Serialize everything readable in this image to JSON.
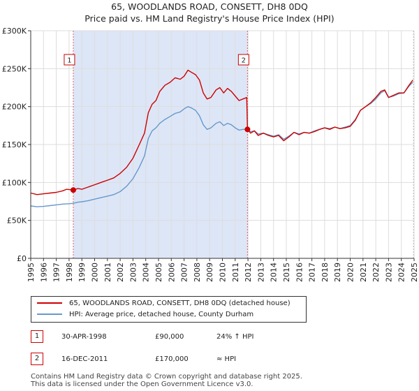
{
  "title_line1": "65, WOODLANDS ROAD, CONSETT, DH8 0DQ",
  "title_line2": "Price paid vs. HM Land Registry's House Price Index (HPI)",
  "colors": {
    "red": "#cc0000",
    "blue": "#6699cc",
    "shade": "#dde6f7",
    "grid": "#dddddd"
  },
  "chart_data": {
    "type": "line",
    "ylim": [
      0,
      300000
    ],
    "xlim": [
      1995,
      2025
    ],
    "y_ticks": [
      {
        "value": 0,
        "label": "£0"
      },
      {
        "value": 50000,
        "label": "£50K"
      },
      {
        "value": 100000,
        "label": "£100K"
      },
      {
        "value": 150000,
        "label": "£150K"
      },
      {
        "value": 200000,
        "label": "£200K"
      },
      {
        "value": 250000,
        "label": "£250K"
      },
      {
        "value": 300000,
        "label": "£300K"
      }
    ],
    "x_ticks": [
      "1995",
      "1996",
      "1997",
      "1998",
      "1999",
      "2000",
      "2001",
      "2002",
      "2003",
      "2004",
      "2005",
      "2006",
      "2007",
      "2008",
      "2009",
      "2010",
      "2011",
      "2012",
      "2013",
      "2014",
      "2015",
      "2016",
      "2017",
      "2018",
      "2019",
      "2020",
      "2021",
      "2022",
      "2023",
      "2024",
      "2025"
    ],
    "series": [
      {
        "name": "65, WOODLANDS ROAD, CONSETT, DH8 0DQ (detached house)",
        "color": "#cc0000",
        "points": [
          [
            1995.0,
            86000
          ],
          [
            1995.5,
            84000
          ],
          [
            1996.0,
            85000
          ],
          [
            1996.5,
            86000
          ],
          [
            1997.0,
            87000
          ],
          [
            1997.5,
            89000
          ],
          [
            1997.8,
            91000
          ],
          [
            1998.33,
            90000
          ],
          [
            1998.7,
            92000
          ],
          [
            1999.0,
            91000
          ],
          [
            1999.5,
            94000
          ],
          [
            2000.0,
            97000
          ],
          [
            2000.5,
            100000
          ],
          [
            2001.0,
            103000
          ],
          [
            2001.5,
            106000
          ],
          [
            2002.0,
            112000
          ],
          [
            2002.5,
            120000
          ],
          [
            2003.0,
            132000
          ],
          [
            2003.5,
            150000
          ],
          [
            2003.9,
            165000
          ],
          [
            2004.2,
            192000
          ],
          [
            2004.5,
            203000
          ],
          [
            2004.8,
            208000
          ],
          [
            2005.1,
            220000
          ],
          [
            2005.5,
            228000
          ],
          [
            2005.9,
            232000
          ],
          [
            2006.3,
            238000
          ],
          [
            2006.7,
            236000
          ],
          [
            2007.0,
            240000
          ],
          [
            2007.3,
            248000
          ],
          [
            2007.6,
            245000
          ],
          [
            2007.9,
            242000
          ],
          [
            2008.2,
            235000
          ],
          [
            2008.5,
            218000
          ],
          [
            2008.8,
            210000
          ],
          [
            2009.1,
            212000
          ],
          [
            2009.5,
            222000
          ],
          [
            2009.8,
            225000
          ],
          [
            2010.1,
            218000
          ],
          [
            2010.4,
            224000
          ],
          [
            2010.7,
            220000
          ],
          [
            2011.0,
            214000
          ],
          [
            2011.3,
            208000
          ],
          [
            2011.6,
            210000
          ],
          [
            2011.9,
            212000
          ],
          [
            2011.96,
            170000
          ],
          [
            2012.2,
            165000
          ],
          [
            2012.5,
            168000
          ],
          [
            2012.8,
            162000
          ],
          [
            2013.2,
            165000
          ],
          [
            2013.6,
            162000
          ],
          [
            2014.0,
            160000
          ],
          [
            2014.4,
            162000
          ],
          [
            2014.8,
            155000
          ],
          [
            2015.2,
            160000
          ],
          [
            2015.6,
            166000
          ],
          [
            2016.0,
            163000
          ],
          [
            2016.4,
            166000
          ],
          [
            2016.8,
            165000
          ],
          [
            2017.2,
            167000
          ],
          [
            2017.6,
            170000
          ],
          [
            2018.0,
            172000
          ],
          [
            2018.4,
            170000
          ],
          [
            2018.8,
            173000
          ],
          [
            2019.2,
            171000
          ],
          [
            2019.6,
            172000
          ],
          [
            2020.0,
            174000
          ],
          [
            2020.4,
            182000
          ],
          [
            2020.8,
            195000
          ],
          [
            2021.2,
            200000
          ],
          [
            2021.6,
            205000
          ],
          [
            2022.0,
            212000
          ],
          [
            2022.4,
            220000
          ],
          [
            2022.7,
            222000
          ],
          [
            2023.0,
            212000
          ],
          [
            2023.4,
            215000
          ],
          [
            2023.8,
            218000
          ],
          [
            2024.2,
            218000
          ],
          [
            2024.6,
            228000
          ],
          [
            2024.9,
            235000
          ]
        ]
      },
      {
        "name": "HPI: Average price, detached house, County Durham",
        "color": "#6699cc",
        "points": [
          [
            1995.0,
            69000
          ],
          [
            1995.5,
            68000
          ],
          [
            1996.0,
            68500
          ],
          [
            1996.5,
            69500
          ],
          [
            1997.0,
            70500
          ],
          [
            1997.5,
            71500
          ],
          [
            1998.0,
            72000
          ],
          [
            1998.33,
            72500
          ],
          [
            1998.7,
            74000
          ],
          [
            1999.0,
            74500
          ],
          [
            1999.5,
            76000
          ],
          [
            2000.0,
            78000
          ],
          [
            2000.5,
            80000
          ],
          [
            2001.0,
            82000
          ],
          [
            2001.5,
            84000
          ],
          [
            2002.0,
            88000
          ],
          [
            2002.5,
            95000
          ],
          [
            2003.0,
            105000
          ],
          [
            2003.5,
            120000
          ],
          [
            2003.9,
            135000
          ],
          [
            2004.2,
            158000
          ],
          [
            2004.5,
            168000
          ],
          [
            2004.8,
            172000
          ],
          [
            2005.1,
            178000
          ],
          [
            2005.5,
            183000
          ],
          [
            2005.9,
            187000
          ],
          [
            2006.3,
            191000
          ],
          [
            2006.7,
            193000
          ],
          [
            2007.0,
            197000
          ],
          [
            2007.3,
            200000
          ],
          [
            2007.6,
            198000
          ],
          [
            2007.9,
            195000
          ],
          [
            2008.2,
            188000
          ],
          [
            2008.5,
            176000
          ],
          [
            2008.8,
            170000
          ],
          [
            2009.1,
            172000
          ],
          [
            2009.5,
            178000
          ],
          [
            2009.8,
            180000
          ],
          [
            2010.1,
            175000
          ],
          [
            2010.4,
            178000
          ],
          [
            2010.7,
            176000
          ],
          [
            2011.0,
            172000
          ],
          [
            2011.3,
            169000
          ],
          [
            2011.6,
            170000
          ],
          [
            2011.96,
            170000
          ],
          [
            2012.2,
            167000
          ],
          [
            2012.5,
            168000
          ],
          [
            2012.8,
            164000
          ],
          [
            2013.2,
            165000
          ],
          [
            2013.6,
            163000
          ],
          [
            2014.0,
            161000
          ],
          [
            2014.4,
            163000
          ],
          [
            2014.8,
            157000
          ],
          [
            2015.2,
            161000
          ],
          [
            2015.6,
            166000
          ],
          [
            2016.0,
            164000
          ],
          [
            2016.4,
            166000
          ],
          [
            2016.8,
            165000
          ],
          [
            2017.2,
            168000
          ],
          [
            2017.6,
            170000
          ],
          [
            2018.0,
            172000
          ],
          [
            2018.4,
            171000
          ],
          [
            2018.8,
            173000
          ],
          [
            2019.2,
            171000
          ],
          [
            2019.6,
            173000
          ],
          [
            2020.0,
            175000
          ],
          [
            2020.4,
            183000
          ],
          [
            2020.8,
            195000
          ],
          [
            2021.2,
            200000
          ],
          [
            2021.6,
            204000
          ],
          [
            2022.0,
            210000
          ],
          [
            2022.4,
            218000
          ],
          [
            2022.7,
            221000
          ],
          [
            2023.0,
            212000
          ],
          [
            2023.4,
            214000
          ],
          [
            2023.8,
            217000
          ],
          [
            2024.2,
            218000
          ],
          [
            2024.6,
            227000
          ],
          [
            2024.9,
            232000
          ]
        ]
      }
    ],
    "sales": [
      {
        "id": "1",
        "x": 1998.33,
        "y": 90000
      },
      {
        "id": "2",
        "x": 2011.96,
        "y": 170000
      }
    ],
    "shaded_region": [
      1998.33,
      2011.96
    ]
  },
  "legend": {
    "red_label": "65, WOODLANDS ROAD, CONSETT, DH8 0DQ (detached house)",
    "blue_label": "HPI: Average price, detached house, County Durham"
  },
  "annotations": [
    {
      "id": "1",
      "date": "30-APR-1998",
      "price": "£90,000",
      "hpi": "24% ↑ HPI"
    },
    {
      "id": "2",
      "date": "16-DEC-2011",
      "price": "£170,000",
      "hpi": "≈ HPI"
    }
  ],
  "footer": {
    "line1": "Contains HM Land Registry data © Crown copyright and database right 2025.",
    "line2": "This data is licensed under the Open Government Licence v3.0."
  }
}
